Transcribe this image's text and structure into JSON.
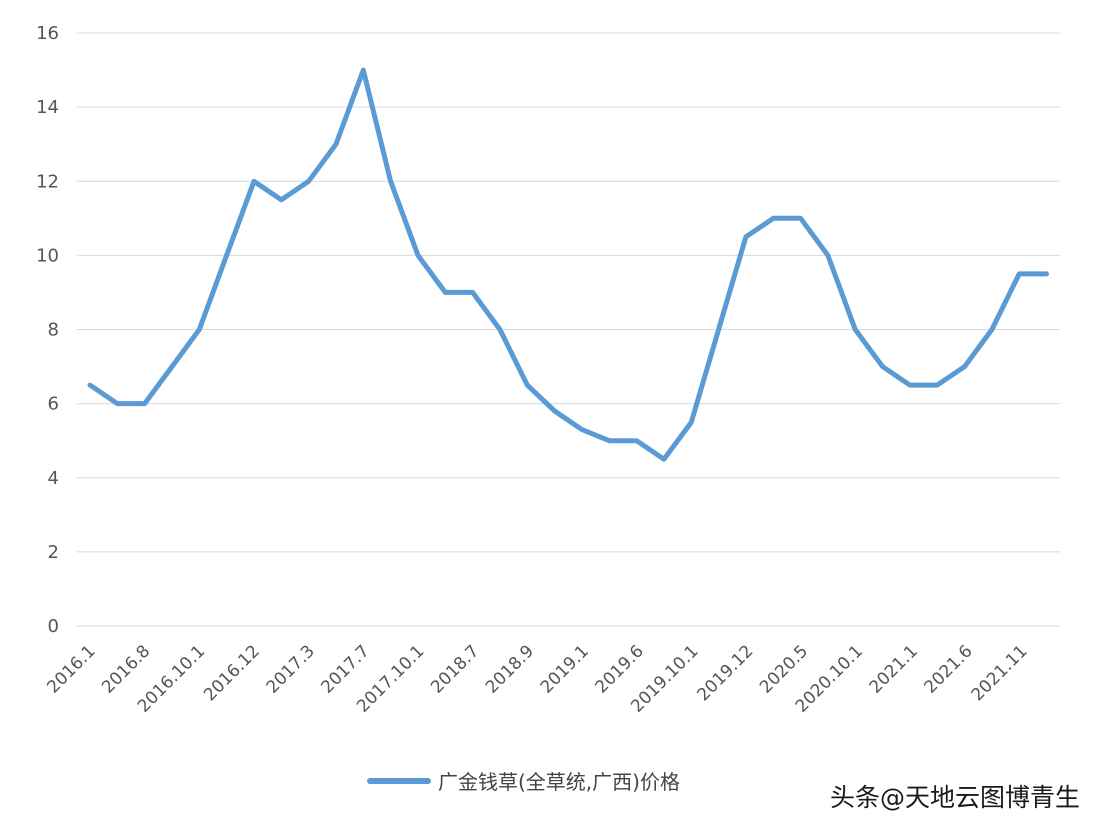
{
  "chart_data": {
    "type": "line",
    "y_ticks": [
      "0",
      "2",
      "4",
      "6",
      "8",
      "10",
      "12",
      "14",
      "16"
    ],
    "ylim": [
      0,
      16
    ],
    "grid": true,
    "x_tick_labels": [
      "2016.1",
      "2016.8",
      "2016.10.1",
      "2016.12",
      "2017.3",
      "2017.7",
      "2017.10.1",
      "2018.7",
      "2018.9",
      "2019.1",
      "2019.6",
      "2019.10.1",
      "2019.12",
      "2020.5",
      "2020.10.1",
      "2021.1",
      "2021.6",
      "2021.11"
    ],
    "legend_position": "bottom",
    "series": [
      {
        "name": "广金钱草(全草统,广西)价格",
        "color": "#5b9bd5",
        "values": [
          6.5,
          6.0,
          6.0,
          7.0,
          8.0,
          10.0,
          12.0,
          11.5,
          12.0,
          13.0,
          15.0,
          12.0,
          10.0,
          9.0,
          9.0,
          8.0,
          6.5,
          5.8,
          5.3,
          5.0,
          5.0,
          4.5,
          5.5,
          8.0,
          10.5,
          11.0,
          11.0,
          10.0,
          8.0,
          7.0,
          6.5,
          6.5,
          7.0,
          8.0,
          9.5,
          9.5
        ]
      }
    ]
  },
  "watermark": {
    "text": "头条@天地云图博青生"
  }
}
